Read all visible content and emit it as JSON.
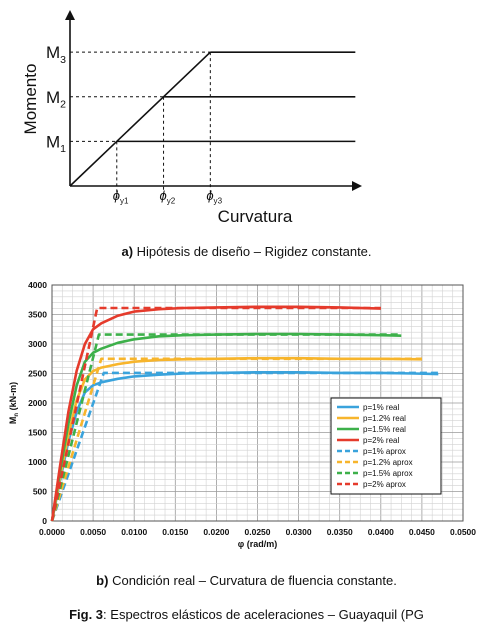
{
  "captions": {
    "a_letter": "a)",
    "a_text": "Hipótesis de diseño – Rigidez constante.",
    "b_letter": "b)",
    "b_text": "Condición real – Curvatura de fluencia constante.",
    "fig_label": "Fig. 3",
    "fig_text": ": Espectros elásticos de aceleraciones – Guayaquil (PG"
  },
  "chart_data": [
    {
      "type": "line",
      "title": "",
      "xlabel": "Curvatura",
      "ylabel": "Momento",
      "y_levels": [
        {
          "label_main": "M",
          "label_sub": "1",
          "value": 1
        },
        {
          "label_main": "M",
          "label_sub": "2",
          "value": 2
        },
        {
          "label_main": "M",
          "label_sub": "3",
          "value": 3
        }
      ],
      "x_marks": [
        {
          "label_main": "ϕ",
          "label_sub": "y1",
          "value": 1
        },
        {
          "label_main": "ϕ",
          "label_sub": "y2",
          "value": 2
        },
        {
          "label_main": "ϕ",
          "label_sub": "y3",
          "value": 3
        }
      ],
      "xlim": [
        0,
        6.2
      ],
      "ylim": [
        0,
        3.9
      ],
      "series": [
        {
          "points": [
            [
              0,
              0
            ],
            [
              3,
              3
            ]
          ]
        },
        {
          "points": [
            [
              1,
              1
            ],
            [
              6.1,
              1
            ]
          ]
        },
        {
          "points": [
            [
              2,
              2
            ],
            [
              6.1,
              2
            ]
          ]
        },
        {
          "points": [
            [
              3,
              3
            ],
            [
              6.1,
              3
            ]
          ]
        }
      ]
    },
    {
      "type": "line",
      "title": "",
      "xlabel": "φ (rad/m)",
      "ylabel_main": "M",
      "ylabel_sub": "n",
      "ylabel_tail": " (kN-m)",
      "xlim": [
        0,
        0.05
      ],
      "ylim": [
        0,
        4000
      ],
      "x_ticks": [
        "0.0000",
        "0.0050",
        "0.0100",
        "0.0150",
        "0.0200",
        "0.0250",
        "0.0300",
        "0.0350",
        "0.0400",
        "0.0450",
        "0.0500"
      ],
      "y_ticks": [
        "0",
        "500",
        "1000",
        "1500",
        "2000",
        "2500",
        "3000",
        "3500",
        "4000"
      ],
      "grid": true,
      "legend_position": "right",
      "series": [
        {
          "name": "p=1% real",
          "color": "#3aa3dc",
          "dash": false,
          "x": [
            0,
            0.001,
            0.002,
            0.003,
            0.004,
            0.005,
            0.006,
            0.008,
            0.01,
            0.013,
            0.016,
            0.02,
            0.025,
            0.03,
            0.035,
            0.04,
            0.044,
            0.047
          ],
          "y": [
            0,
            700,
            1350,
            1850,
            2180,
            2300,
            2350,
            2410,
            2450,
            2480,
            2500,
            2510,
            2520,
            2520,
            2510,
            2510,
            2500,
            2490
          ]
        },
        {
          "name": "p=1.2% real",
          "color": "#f7b52c",
          "dash": false,
          "x": [
            0,
            0.001,
            0.002,
            0.003,
            0.004,
            0.005,
            0.006,
            0.008,
            0.01,
            0.013,
            0.016,
            0.02,
            0.025,
            0.03,
            0.035,
            0.04,
            0.045
          ],
          "y": [
            0,
            750,
            1450,
            2050,
            2400,
            2540,
            2600,
            2660,
            2700,
            2730,
            2740,
            2750,
            2760,
            2760,
            2750,
            2750,
            2740
          ]
        },
        {
          "name": "p=1.5% real",
          "color": "#3db04a",
          "dash": false,
          "x": [
            0,
            0.001,
            0.002,
            0.003,
            0.004,
            0.005,
            0.006,
            0.008,
            0.01,
            0.013,
            0.016,
            0.02,
            0.025,
            0.03,
            0.035,
            0.04,
            0.0425
          ],
          "y": [
            0,
            850,
            1650,
            2300,
            2700,
            2850,
            2920,
            3020,
            3080,
            3130,
            3150,
            3160,
            3170,
            3170,
            3160,
            3150,
            3140
          ]
        },
        {
          "name": "p=2% real",
          "color": "#e53b2c",
          "dash": false,
          "x": [
            0,
            0.001,
            0.002,
            0.003,
            0.004,
            0.005,
            0.006,
            0.008,
            0.01,
            0.013,
            0.016,
            0.02,
            0.025,
            0.03,
            0.035,
            0.04
          ],
          "y": [
            0,
            950,
            1850,
            2550,
            3000,
            3250,
            3350,
            3480,
            3550,
            3590,
            3610,
            3620,
            3630,
            3630,
            3620,
            3600
          ]
        },
        {
          "name": "p=1% aprox",
          "color": "#3aa3dc",
          "dash": true,
          "x": [
            0,
            0.0063,
            0.047
          ],
          "y": [
            0,
            2510,
            2510
          ]
        },
        {
          "name": "p=1.2% aprox",
          "color": "#f7b52c",
          "dash": true,
          "x": [
            0,
            0.006,
            0.045
          ],
          "y": [
            0,
            2750,
            2750
          ]
        },
        {
          "name": "p=1.5% aprox",
          "color": "#3db04a",
          "dash": true,
          "x": [
            0,
            0.0057,
            0.0425
          ],
          "y": [
            0,
            3160,
            3160
          ]
        },
        {
          "name": "p=2% aprox",
          "color": "#e53b2c",
          "dash": true,
          "x": [
            0,
            0.0055,
            0.04
          ],
          "y": [
            0,
            3610,
            3610
          ]
        }
      ]
    }
  ]
}
